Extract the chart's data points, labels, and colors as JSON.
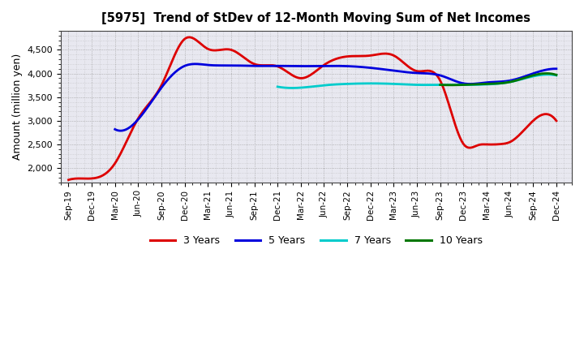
{
  "title": "[5975]  Trend of StDev of 12-Month Moving Sum of Net Incomes",
  "ylabel": "Amount (million yen)",
  "background_color": "#ffffff",
  "plot_bg_color": "#e8e8f0",
  "grid_color": "#999999",
  "ylim": [
    1700,
    4900
  ],
  "yticks": [
    2000,
    2500,
    3000,
    3500,
    4000,
    4500
  ],
  "x_labels": [
    "Sep-19",
    "Dec-19",
    "Mar-20",
    "Jun-20",
    "Sep-20",
    "Dec-20",
    "Mar-21",
    "Jun-21",
    "Sep-21",
    "Dec-21",
    "Mar-22",
    "Jun-22",
    "Sep-22",
    "Dec-22",
    "Mar-23",
    "Jun-23",
    "Sep-23",
    "Dec-23",
    "Mar-24",
    "Jun-24",
    "Sep-24",
    "Dec-24"
  ],
  "series": {
    "3 Years": {
      "color": "#dd0000",
      "linewidth": 2.0,
      "data": [
        [
          0,
          1750
        ],
        [
          3,
          1780
        ],
        [
          6,
          2100
        ],
        [
          9,
          3050
        ],
        [
          12,
          3750
        ],
        [
          15,
          4730
        ],
        [
          18,
          4520
        ],
        [
          21,
          4500
        ],
        [
          24,
          4200
        ],
        [
          27,
          4150
        ],
        [
          30,
          3900
        ],
        [
          33,
          4180
        ],
        [
          36,
          4360
        ],
        [
          39,
          4380
        ],
        [
          42,
          4380
        ],
        [
          45,
          4050
        ],
        [
          48,
          3850
        ],
        [
          51,
          2510
        ],
        [
          53,
          2490
        ],
        [
          54,
          2500
        ],
        [
          56,
          2510
        ],
        [
          57,
          2550
        ],
        [
          60,
          3000
        ],
        [
          63,
          3000
        ]
      ]
    },
    "5 Years": {
      "color": "#0000dd",
      "linewidth": 2.0,
      "data": [
        [
          6,
          2820
        ],
        [
          9,
          3030
        ],
        [
          12,
          3700
        ],
        [
          15,
          4160
        ],
        [
          18,
          4180
        ],
        [
          21,
          4170
        ],
        [
          24,
          4160
        ],
        [
          27,
          4160
        ],
        [
          30,
          4155
        ],
        [
          33,
          4160
        ],
        [
          36,
          4155
        ],
        [
          39,
          4120
        ],
        [
          42,
          4060
        ],
        [
          45,
          4010
        ],
        [
          48,
          3960
        ],
        [
          51,
          3790
        ],
        [
          54,
          3810
        ],
        [
          57,
          3850
        ],
        [
          60,
          4000
        ],
        [
          63,
          4100
        ]
      ]
    },
    "7 Years": {
      "color": "#00cccc",
      "linewidth": 2.0,
      "data": [
        [
          27,
          3720
        ],
        [
          30,
          3700
        ],
        [
          33,
          3750
        ],
        [
          36,
          3780
        ],
        [
          39,
          3790
        ],
        [
          42,
          3780
        ],
        [
          45,
          3760
        ],
        [
          48,
          3760
        ],
        [
          51,
          3760
        ],
        [
          54,
          3770
        ],
        [
          57,
          3820
        ],
        [
          60,
          3940
        ],
        [
          63,
          3960
        ]
      ]
    },
    "10 Years": {
      "color": "#007700",
      "linewidth": 2.0,
      "data": [
        [
          48,
          3760
        ],
        [
          51,
          3760
        ],
        [
          54,
          3780
        ],
        [
          57,
          3820
        ],
        [
          60,
          3960
        ],
        [
          63,
          3970
        ]
      ]
    }
  },
  "legend": {
    "labels": [
      "3 Years",
      "5 Years",
      "7 Years",
      "10 Years"
    ],
    "colors": [
      "#dd0000",
      "#0000dd",
      "#00cccc",
      "#007700"
    ]
  }
}
